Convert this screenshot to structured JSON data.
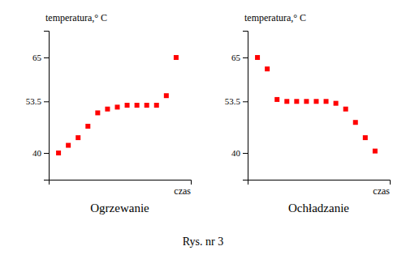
{
  "title": "Rys. nr 3",
  "chart_data": [
    {
      "type": "scatter",
      "title": "Ogrzewanie",
      "xlabel": "czas",
      "ylabel": "temperatura,° C",
      "x": [
        1,
        2,
        3,
        4,
        5,
        6,
        7,
        8,
        9,
        10,
        11,
        12,
        13
      ],
      "values": [
        40,
        42,
        44,
        47,
        50.5,
        51.5,
        52,
        52.5,
        52.5,
        52.5,
        52.5,
        55,
        65
      ],
      "color": "#ff0000",
      "marker": "square",
      "xlim": [
        0,
        14.5
      ],
      "ylim": [
        33,
        72
      ],
      "yticks": [
        40,
        53.5,
        65
      ],
      "tick_labels": "y",
      "grid": false
    },
    {
      "type": "scatter",
      "title": "Ochładzanie",
      "xlabel": "czas",
      "ylabel": "temperatura,° C",
      "x": [
        1,
        2,
        3,
        4,
        5,
        6,
        7,
        8,
        9,
        10,
        11,
        12,
        13
      ],
      "values": [
        65,
        62,
        54,
        53.5,
        53.5,
        53.5,
        53.5,
        53.5,
        53,
        51.5,
        48,
        44,
        40.5
      ],
      "color": "#ff0000",
      "marker": "square",
      "xlim": [
        0,
        14.5
      ],
      "ylim": [
        33,
        72
      ],
      "yticks": [
        40,
        53.5,
        65
      ],
      "tick_labels": "y",
      "grid": false
    }
  ]
}
